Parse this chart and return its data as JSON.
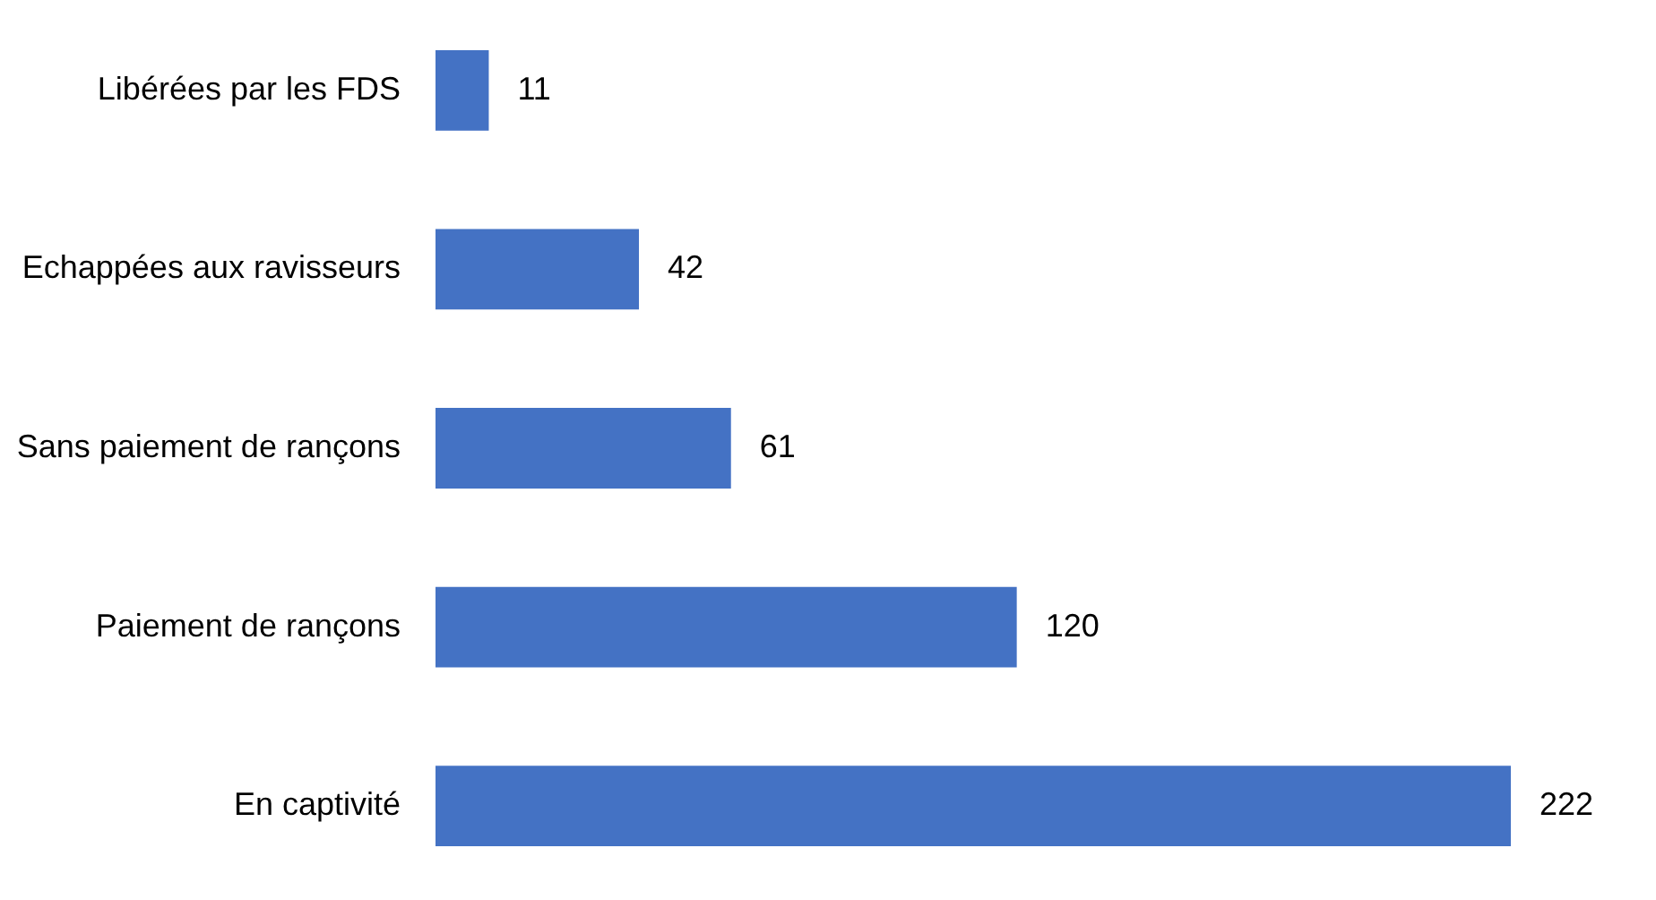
{
  "chart_data": {
    "type": "bar",
    "orientation": "horizontal",
    "categories": [
      "Libérées par les FDS",
      "Echappées aux ravisseurs",
      "Sans paiement de rançons",
      "Paiement de rançons",
      "En captivité"
    ],
    "values": [
      11,
      42,
      61,
      120,
      222
    ],
    "color": "#4472c4",
    "data_labels": true,
    "tick_labels": "y"
  }
}
